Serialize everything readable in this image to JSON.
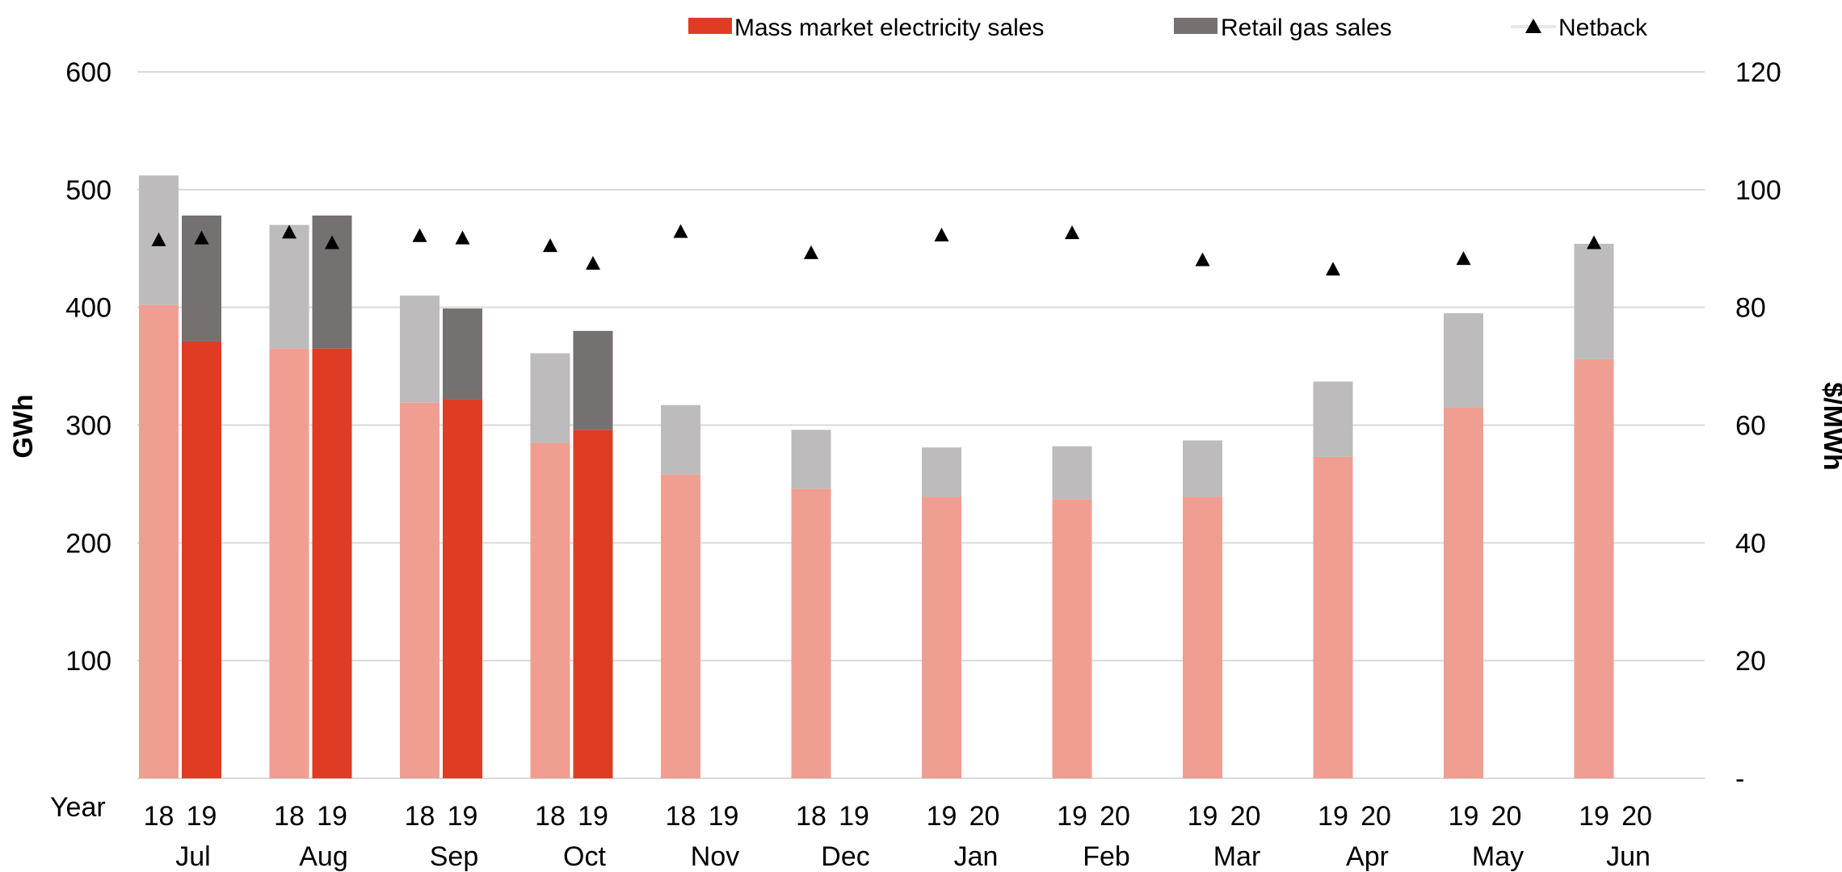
{
  "chart_data": {
    "type": "bar",
    "title": "",
    "ylabel": "GWh",
    "y2label": "$/MWh",
    "xlabel": "Year",
    "ylim": [
      0,
      600
    ],
    "y2lim": [
      0,
      120
    ],
    "yticks": [
      "100",
      "200",
      "300",
      "400",
      "500",
      "600"
    ],
    "y2ticks": [
      "-",
      "20",
      "40",
      "60",
      "80",
      "100",
      "120"
    ],
    "grid": true,
    "legend_position": "top",
    "legend": [
      {
        "label": "Mass market electricity sales",
        "marker": "rect",
        "color": "#E03C24"
      },
      {
        "label": "Retail gas sales",
        "marker": "rect",
        "color": "#767171"
      },
      {
        "label": "Netback",
        "marker": "triangle",
        "color": "#000000"
      }
    ],
    "colors": {
      "electricity_current": "#E03C24",
      "electricity_prior": "#F09E92",
      "gas_current": "#767171",
      "gas_prior": "#BDBBBB",
      "netback": "#000000",
      "grid": "#D9D9D9"
    },
    "months": [
      {
        "month": "Jul",
        "years": [
          "18",
          "19"
        ],
        "prior": {
          "electricity": 402,
          "gas": 110,
          "netback": 91.5
        },
        "current": {
          "electricity": 371,
          "gas": 107,
          "netback": 91.8
        }
      },
      {
        "month": "Aug",
        "years": [
          "18",
          "19"
        ],
        "prior": {
          "electricity": 365,
          "gas": 105,
          "netback": 92.8
        },
        "current": {
          "electricity": 365,
          "gas": 113,
          "netback": 91.0
        }
      },
      {
        "month": "Sep",
        "years": [
          "18",
          "19"
        ],
        "prior": {
          "electricity": 319,
          "gas": 91,
          "netback": 92.2
        },
        "current": {
          "electricity": 322,
          "gas": 77,
          "netback": 91.8
        }
      },
      {
        "month": "Oct",
        "years": [
          "18",
          "19"
        ],
        "prior": {
          "electricity": 285,
          "gas": 76,
          "netback": 90.5
        },
        "current": {
          "electricity": 296,
          "gas": 84,
          "netback": 87.5
        }
      },
      {
        "month": "Nov",
        "years": [
          "18",
          "19"
        ],
        "prior": {
          "electricity": 258,
          "gas": 59,
          "netback": 92.9
        },
        "current": null
      },
      {
        "month": "Dec",
        "years": [
          "18",
          "19"
        ],
        "prior": {
          "electricity": 246,
          "gas": 50,
          "netback": 89.3
        },
        "current": null
      },
      {
        "month": "Jan",
        "years": [
          "19",
          "20"
        ],
        "prior": {
          "electricity": 239,
          "gas": 42,
          "netback": 92.3
        },
        "current": null
      },
      {
        "month": "Feb",
        "years": [
          "19",
          "20"
        ],
        "prior": {
          "electricity": 237,
          "gas": 45,
          "netback": 92.7
        },
        "current": null
      },
      {
        "month": "Mar",
        "years": [
          "19",
          "20"
        ],
        "prior": {
          "electricity": 239,
          "gas": 48,
          "netback": 88.1
        },
        "current": null
      },
      {
        "month": "Apr",
        "years": [
          "19",
          "20"
        ],
        "prior": {
          "electricity": 273,
          "gas": 64,
          "netback": 86.5
        },
        "current": null
      },
      {
        "month": "May",
        "years": [
          "19",
          "20"
        ],
        "prior": {
          "electricity": 315,
          "gas": 80,
          "netback": 88.3
        },
        "current": null
      },
      {
        "month": "Jun",
        "years": [
          "19",
          "20"
        ],
        "prior": {
          "electricity": 356,
          "gas": 98,
          "netback": 91.0
        },
        "current": null
      }
    ]
  }
}
